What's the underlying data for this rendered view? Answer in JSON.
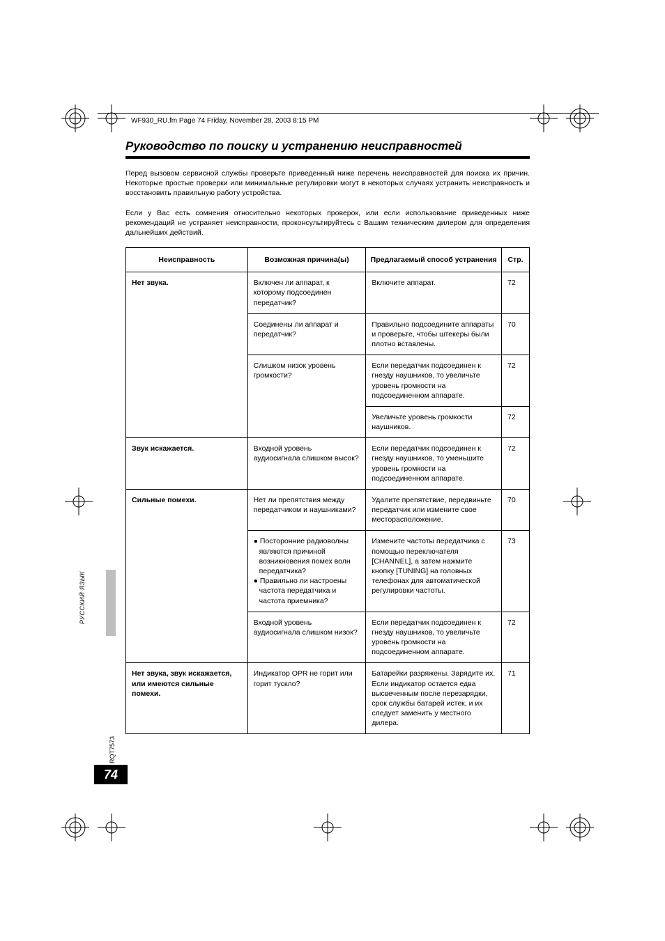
{
  "header_line": "WF930_RU.fm  Page 74  Friday, November 28, 2003  8:15 PM",
  "title": "Руководство по поиску и устранению неисправностей",
  "intro_p1": "Перед вызовом сервисной службы проверьте приведенный ниже перечень неисправностей для поиска их причин. Некоторые простые проверки или минимальные регулировки могут в некоторых случаях устранить неисправность и восстановить правильную работу устройства.",
  "intro_p2": "Если у Вас есть сомнения относительно некоторых проверок, или если использование приведенных ниже рекомендаций не устраняет неисправности, проконсультируйтесь с Вашим техническим дилером для определения дальнейших действий.",
  "table": {
    "columns": [
      "Неисправность",
      "Возможная причина(ы)",
      "Предлагаемый способ устранения",
      "Стр."
    ],
    "groups": [
      {
        "problem": "Нет звука.",
        "rows": [
          {
            "cause": "Включен ли аппарат, к которому подсоединен передатчик?",
            "remedy": "Включите аппарат.",
            "page": "72"
          },
          {
            "cause": "Соединены ли аппарат и передатчик?",
            "remedy": "Правильно подсоедините аппараты и проверьте, чтобы штекеры были плотно вставлены.",
            "page": "70"
          },
          {
            "cause": "Слишком низок уровень громкости?",
            "remedy": "Если передатчик подсоединен к гнезду наушников, то увеличьте уровень громкости на подсоединенном аппарате.",
            "page": "72"
          },
          {
            "cause": "",
            "remedy": "Увеличьте уровень громкости наушников.",
            "page": "72"
          }
        ]
      },
      {
        "problem": "Звук искажается.",
        "rows": [
          {
            "cause": "Входной уровень аудиосигнала слишком высок?",
            "remedy": "Если передатчик подсоединен к гнезду наушников, то уменьшите уровень громкости на подсоединенном аппарате.",
            "page": "72"
          }
        ]
      },
      {
        "problem": "Сильные помехи.",
        "rows": [
          {
            "cause": "Нет ли препятствия между передатчиком и наушниками?",
            "remedy": "Удалите препятствие, передвиньте передатчик или измените свое месторасположение.",
            "page": "70"
          },
          {
            "cause_list": [
              "Посторонние радиоволны являются причиной возникновения помех волн передатчика?",
              "Правильно ли настроены частота передатчика и частота приемника?"
            ],
            "remedy": "Измените частоты передатчика с помощью переключателя [CHANNEL], а затем нажмите кнопку [TUNING] на головных телефонах для автоматической регулировки частоты.",
            "page": "73"
          },
          {
            "cause": "Входной уровень аудиосигнала слишком низок?",
            "remedy": "Если передатчик подсоединен к гнезду наушников, то увеличьте уровень громкости на подсоединенном аппарате.",
            "page": "72"
          }
        ]
      },
      {
        "problem": "Нет звука, звук искажается, или имеются сильные помехи.",
        "rows": [
          {
            "cause": "Индикатор OPR не горит или горит тускло?",
            "remedy": "Батарейки разряжены. Зарядите их.\nЕсли индикатор остается едва высвеченным после перезарядки, срок службы батарей истек, и их следует заменить у местного дилера.",
            "page": "71"
          }
        ]
      }
    ]
  },
  "side_tab": "РУССКИЙ ЯЗЫК",
  "rqt": "RQT7573",
  "page_number": "74",
  "colors": {
    "side_tab_bg": "#bfbfbf",
    "text": "#000000",
    "bg": "#ffffff"
  }
}
